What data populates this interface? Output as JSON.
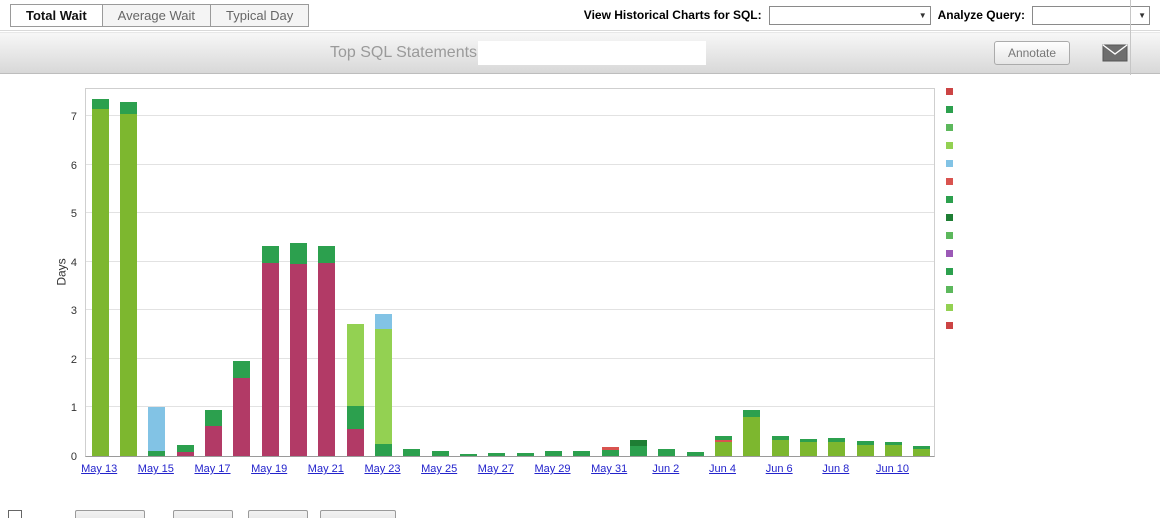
{
  "toolbar": {
    "tabs": [
      {
        "label": "Total Wait",
        "active": true
      },
      {
        "label": "Average Wait",
        "active": false
      },
      {
        "label": "Typical Day",
        "active": false
      }
    ],
    "historical_charts_label": "View Historical Charts for SQL:",
    "historical_charts_value": "",
    "analyze_query_label": "Analyze Query:",
    "analyze_query_value": ""
  },
  "header": {
    "title": "Top SQL Statements",
    "annotate_button": "Annotate"
  },
  "chart_data": {
    "type": "bar",
    "stacked": true,
    "title": "Top SQL Statements",
    "ylabel": "Days",
    "ylim": [
      0,
      7.6
    ],
    "yticks": [
      0,
      1,
      2,
      3,
      4,
      5,
      6,
      7
    ],
    "grid": true,
    "legend_position": "right",
    "x_tick_labels": [
      "May 13",
      "May 15",
      "May 17",
      "May 19",
      "May 21",
      "May 23",
      "May 25",
      "May 27",
      "May 29",
      "May 31",
      "Jun 2",
      "Jun 4",
      "Jun 6",
      "Jun 8",
      "Jun 10"
    ],
    "legend_colors": [
      "#cc4444",
      "#2ca04e",
      "#5cb85c",
      "#93d152",
      "#82c3e5",
      "#d9534f",
      "#2ca04e",
      "#1e7e34",
      "#5cb85c",
      "#9b59b6",
      "#2ca04e",
      "#5cb85c",
      "#93d152",
      "#cc4444"
    ],
    "bars": [
      {
        "date": "May 13",
        "segments": [
          {
            "color": "#7db72f",
            "value": 7.15
          },
          {
            "color": "#2ca04e",
            "value": 0.2
          }
        ]
      },
      {
        "date": "May 14",
        "segments": [
          {
            "color": "#7db72f",
            "value": 7.05
          },
          {
            "color": "#2ca04e",
            "value": 0.25
          }
        ]
      },
      {
        "date": "May 15",
        "segments": [
          {
            "color": "#2ca04e",
            "value": 0.1
          },
          {
            "color": "#82c3e5",
            "value": 0.9
          }
        ]
      },
      {
        "date": "May 16",
        "segments": [
          {
            "color": "#b23a66",
            "value": 0.08
          },
          {
            "color": "#2ca04e",
            "value": 0.14
          }
        ]
      },
      {
        "date": "May 17",
        "segments": [
          {
            "color": "#b23a66",
            "value": 0.62
          },
          {
            "color": "#2ca04e",
            "value": 0.32
          }
        ]
      },
      {
        "date": "May 18",
        "segments": [
          {
            "color": "#b23a66",
            "value": 1.6
          },
          {
            "color": "#2ca04e",
            "value": 0.35
          }
        ]
      },
      {
        "date": "May 19",
        "segments": [
          {
            "color": "#b23a66",
            "value": 3.97
          },
          {
            "color": "#2ca04e",
            "value": 0.35
          }
        ]
      },
      {
        "date": "May 20",
        "segments": [
          {
            "color": "#b23a66",
            "value": 3.95
          },
          {
            "color": "#2ca04e",
            "value": 0.43
          }
        ]
      },
      {
        "date": "May 21",
        "segments": [
          {
            "color": "#b23a66",
            "value": 3.97
          },
          {
            "color": "#2ca04e",
            "value": 0.36
          }
        ]
      },
      {
        "date": "May 22",
        "segments": [
          {
            "color": "#b23a66",
            "value": 0.55
          },
          {
            "color": "#2ca04e",
            "value": 0.47
          },
          {
            "color": "#93d152",
            "value": 1.7
          }
        ]
      },
      {
        "date": "May 23",
        "segments": [
          {
            "color": "#2ca04e",
            "value": 0.25
          },
          {
            "color": "#93d152",
            "value": 2.37
          },
          {
            "color": "#82c3e5",
            "value": 0.31
          }
        ]
      },
      {
        "date": "May 24",
        "segments": [
          {
            "color": "#2ca04e",
            "value": 0.15
          }
        ]
      },
      {
        "date": "May 25",
        "segments": [
          {
            "color": "#2ca04e",
            "value": 0.1
          }
        ]
      },
      {
        "date": "May 26",
        "segments": [
          {
            "color": "#2ca04e",
            "value": 0.05
          }
        ]
      },
      {
        "date": "May 27",
        "segments": [
          {
            "color": "#2ca04e",
            "value": 0.07
          }
        ]
      },
      {
        "date": "May 28",
        "segments": [
          {
            "color": "#2ca04e",
            "value": 0.06
          }
        ]
      },
      {
        "date": "May 29",
        "segments": [
          {
            "color": "#2ca04e",
            "value": 0.1
          }
        ]
      },
      {
        "date": "May 30",
        "segments": [
          {
            "color": "#2ca04e",
            "value": 0.1
          }
        ]
      },
      {
        "date": "May 31",
        "segments": [
          {
            "color": "#2ca04e",
            "value": 0.13
          },
          {
            "color": "#d9534f",
            "value": 0.05
          }
        ]
      },
      {
        "date": "Jun 1",
        "segments": [
          {
            "color": "#2ca04e",
            "value": 0.2
          },
          {
            "color": "#1e7e34",
            "value": 0.13
          }
        ]
      },
      {
        "date": "Jun 2",
        "segments": [
          {
            "color": "#2ca04e",
            "value": 0.14
          }
        ]
      },
      {
        "date": "Jun 3",
        "segments": [
          {
            "color": "#2ca04e",
            "value": 0.08
          }
        ]
      },
      {
        "date": "Jun 4",
        "segments": [
          {
            "color": "#7db72f",
            "value": 0.28
          },
          {
            "color": "#d9534f",
            "value": 0.05
          },
          {
            "color": "#2ca04e",
            "value": 0.08
          }
        ]
      },
      {
        "date": "Jun 5",
        "segments": [
          {
            "color": "#7db72f",
            "value": 0.8
          },
          {
            "color": "#2ca04e",
            "value": 0.15
          }
        ]
      },
      {
        "date": "Jun 6",
        "segments": [
          {
            "color": "#7db72f",
            "value": 0.32
          },
          {
            "color": "#2ca04e",
            "value": 0.1
          }
        ]
      },
      {
        "date": "Jun 7",
        "segments": [
          {
            "color": "#7db72f",
            "value": 0.28
          },
          {
            "color": "#2ca04e",
            "value": 0.08
          }
        ]
      },
      {
        "date": "Jun 8",
        "segments": [
          {
            "color": "#7db72f",
            "value": 0.28
          },
          {
            "color": "#2ca04e",
            "value": 0.09
          }
        ]
      },
      {
        "date": "Jun 9",
        "segments": [
          {
            "color": "#7db72f",
            "value": 0.22
          },
          {
            "color": "#2ca04e",
            "value": 0.08
          }
        ]
      },
      {
        "date": "Jun 10",
        "segments": [
          {
            "color": "#7db72f",
            "value": 0.22
          },
          {
            "color": "#2ca04e",
            "value": 0.07
          }
        ]
      },
      {
        "date": "Jun 11",
        "segments": [
          {
            "color": "#7db72f",
            "value": 0.15
          },
          {
            "color": "#2ca04e",
            "value": 0.06
          }
        ]
      }
    ]
  }
}
